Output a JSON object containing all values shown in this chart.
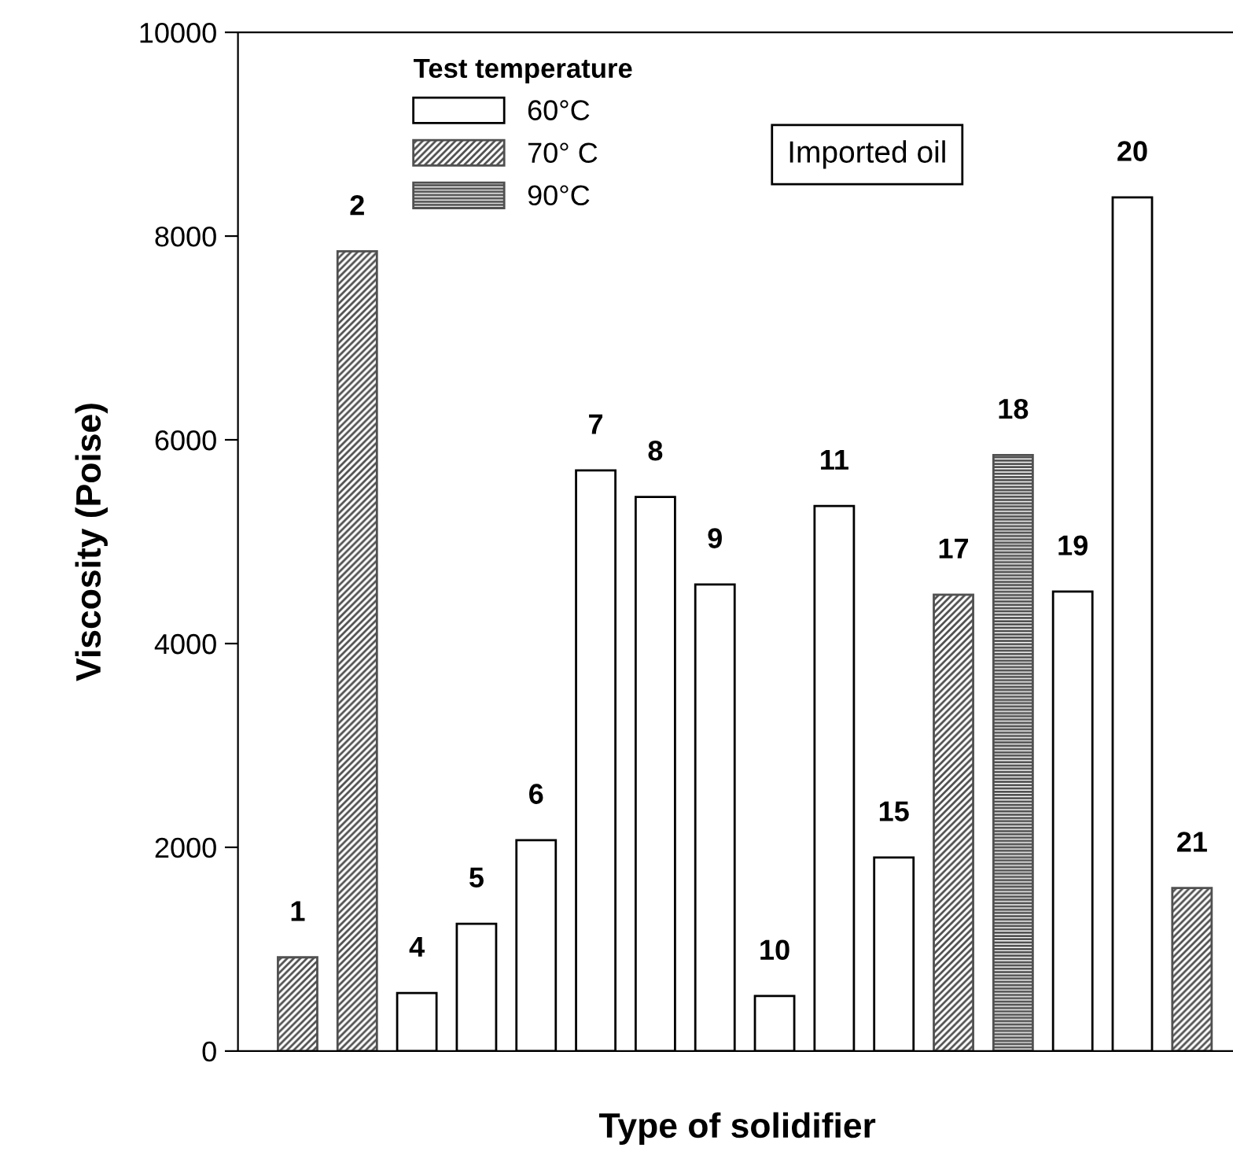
{
  "chart_data": {
    "type": "bar",
    "xlabel": "Type of solidifier",
    "ylabel": "Viscosity (Poise)",
    "legend_title": "Test temperature",
    "annotations": [
      "Imported oil"
    ],
    "categories": [
      "1",
      "2",
      "4",
      "5",
      "6",
      "7",
      "8",
      "9",
      "10",
      "11",
      "15",
      "17",
      "18",
      "19",
      "20",
      "21"
    ],
    "series": [
      {
        "name": "60°C",
        "color": "#ffffff",
        "values": [
          null,
          null,
          570,
          1250,
          2070,
          5700,
          5440,
          4580,
          540,
          5350,
          1900,
          null,
          null,
          4510,
          8380,
          null
        ]
      },
      {
        "name": "70° C",
        "color": "#505050",
        "values": [
          920,
          7850,
          null,
          null,
          null,
          null,
          null,
          null,
          null,
          null,
          null,
          4480,
          null,
          null,
          null,
          1600
        ]
      },
      {
        "name": "90°C",
        "color": "#505050",
        "values": [
          null,
          null,
          null,
          null,
          null,
          null,
          null,
          null,
          null,
          null,
          null,
          null,
          5850,
          null,
          null,
          null
        ]
      }
    ],
    "ylim": [
      0,
      10000
    ],
    "yticks": [
      0,
      2000,
      4000,
      6000,
      8000,
      10000
    ],
    "grid": false,
    "legend": "top left",
    "tick_labels": "y"
  }
}
